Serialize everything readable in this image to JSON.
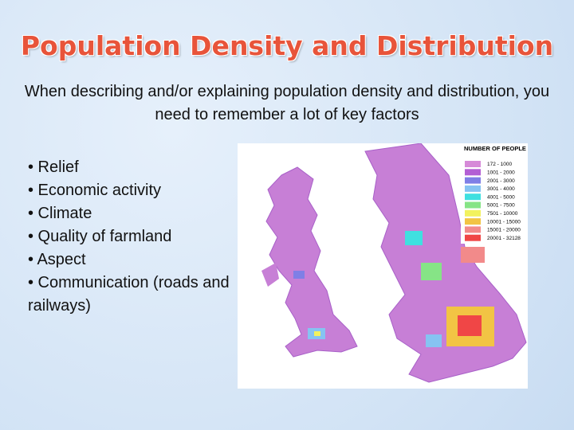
{
  "header": {
    "title": "Population Density and Distribution",
    "subtitle": "When describing and/or explaining population density and distribution, you need to remember a lot of key factors"
  },
  "bullets": [
    "• Relief",
    "• Economic activity",
    "• Climate",
    "• Quality of farmland",
    "• Aspect",
    "• Communication (roads and railways)"
  ],
  "map": {
    "legend_title": "NUMBER OF PEOPLE",
    "legend": [
      {
        "label": "172 - 1000",
        "color": "#d68ad8"
      },
      {
        "label": "1001 - 2000",
        "color": "#b35fd4"
      },
      {
        "label": "2001 - 3000",
        "color": "#7f7fe6"
      },
      {
        "label": "3001 - 4000",
        "color": "#86c3f2"
      },
      {
        "label": "4001 - 5000",
        "color": "#3fe0e0"
      },
      {
        "label": "5001 - 7500",
        "color": "#86e486"
      },
      {
        "label": "7501 - 10000",
        "color": "#f2f25e"
      },
      {
        "label": "10001 - 15000",
        "color": "#f2c444"
      },
      {
        "label": "15001 - 20000",
        "color": "#f28a8a"
      },
      {
        "label": "20001 - 32128",
        "color": "#f04646"
      }
    ]
  }
}
